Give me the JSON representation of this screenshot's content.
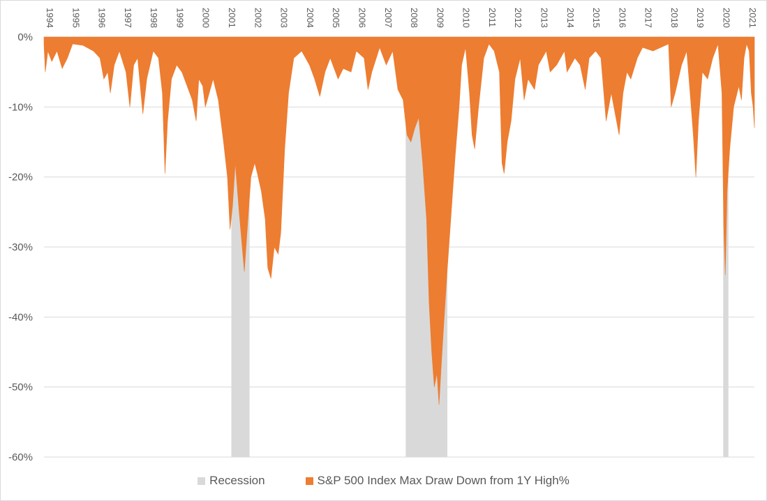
{
  "chart_data": {
    "type": "area",
    "title": "",
    "xlabel": "",
    "ylabel": "",
    "x_range": [
      1994.0,
      2021.3
    ],
    "ylim": [
      -60,
      0
    ],
    "y_ticks": [
      0,
      -10,
      -20,
      -30,
      -40,
      -50,
      -60
    ],
    "y_tick_labels": [
      "0%",
      "-10%",
      "-20%",
      "-30%",
      "-40%",
      "-50%",
      "-60%"
    ],
    "x_tick_labels": [
      "1994",
      "1995",
      "1996",
      "1997",
      "1998",
      "1999",
      "2000",
      "2001",
      "2002",
      "2003",
      "2004",
      "2005",
      "2006",
      "2007",
      "2008",
      "2009",
      "2010",
      "2011",
      "2012",
      "2013",
      "2014",
      "2015",
      "2016",
      "2017",
      "2018",
      "2019",
      "2020",
      "2021"
    ],
    "grid": "horizontal",
    "legend_position": "bottom",
    "colors": {
      "recession": "#d9d9d9",
      "drawdown": "#ed7d31",
      "grid": "#d9d9d9",
      "text": "#595959"
    },
    "series": [
      {
        "name": "Recession",
        "kind": "band",
        "periods": [
          [
            2001.2,
            2001.9
          ],
          [
            2007.9,
            2009.5
          ],
          [
            2020.1,
            2020.3
          ]
        ]
      },
      {
        "name": "S&P 500 Index Max Draw Down from 1Y High%",
        "kind": "area",
        "points": [
          [
            1994.0,
            -1.0
          ],
          [
            1994.05,
            -5.0
          ],
          [
            1994.15,
            -2.0
          ],
          [
            1994.3,
            -3.5
          ],
          [
            1994.5,
            -2.0
          ],
          [
            1994.7,
            -4.5
          ],
          [
            1994.9,
            -3.0
          ],
          [
            1995.1,
            -1.0
          ],
          [
            1995.5,
            -1.2
          ],
          [
            1995.9,
            -2.0
          ],
          [
            1996.15,
            -3.0
          ],
          [
            1996.3,
            -6.0
          ],
          [
            1996.45,
            -5.0
          ],
          [
            1996.55,
            -8.0
          ],
          [
            1996.7,
            -4.0
          ],
          [
            1996.9,
            -2.0
          ],
          [
            1997.15,
            -5.0
          ],
          [
            1997.3,
            -10.0
          ],
          [
            1997.45,
            -4.0
          ],
          [
            1997.6,
            -3.0
          ],
          [
            1997.8,
            -11.0
          ],
          [
            1997.95,
            -6.0
          ],
          [
            1998.2,
            -2.0
          ],
          [
            1998.4,
            -3.0
          ],
          [
            1998.55,
            -8.0
          ],
          [
            1998.65,
            -19.5
          ],
          [
            1998.75,
            -12.0
          ],
          [
            1998.9,
            -6.0
          ],
          [
            1999.1,
            -4.0
          ],
          [
            1999.3,
            -5.0
          ],
          [
            1999.5,
            -7.0
          ],
          [
            1999.7,
            -9.0
          ],
          [
            1999.85,
            -12.0
          ],
          [
            1999.95,
            -6.0
          ],
          [
            2000.1,
            -7.0
          ],
          [
            2000.2,
            -10.0
          ],
          [
            2000.35,
            -8.0
          ],
          [
            2000.5,
            -6.0
          ],
          [
            2000.7,
            -9.0
          ],
          [
            2000.9,
            -15.0
          ],
          [
            2001.05,
            -20.0
          ],
          [
            2001.15,
            -27.5
          ],
          [
            2001.25,
            -24.0
          ],
          [
            2001.35,
            -18.0
          ],
          [
            2001.5,
            -25.0
          ],
          [
            2001.7,
            -33.5
          ],
          [
            2001.8,
            -28.0
          ],
          [
            2001.95,
            -20.0
          ],
          [
            2002.1,
            -18.0
          ],
          [
            2002.2,
            -19.5
          ],
          [
            2002.35,
            -22.0
          ],
          [
            2002.5,
            -26.0
          ],
          [
            2002.6,
            -33.0
          ],
          [
            2002.72,
            -34.5
          ],
          [
            2002.85,
            -30.0
          ],
          [
            2003.0,
            -31.0
          ],
          [
            2003.1,
            -28.0
          ],
          [
            2003.25,
            -16.0
          ],
          [
            2003.4,
            -8.0
          ],
          [
            2003.6,
            -3.0
          ],
          [
            2003.9,
            -2.0
          ],
          [
            2004.2,
            -4.0
          ],
          [
            2004.4,
            -6.0
          ],
          [
            2004.6,
            -8.5
          ],
          [
            2004.8,
            -5.0
          ],
          [
            2005.0,
            -3.0
          ],
          [
            2005.3,
            -6.0
          ],
          [
            2005.5,
            -4.5
          ],
          [
            2005.8,
            -5.0
          ],
          [
            2006.0,
            -2.0
          ],
          [
            2006.3,
            -3.0
          ],
          [
            2006.45,
            -7.5
          ],
          [
            2006.6,
            -5.0
          ],
          [
            2006.9,
            -1.5
          ],
          [
            2007.15,
            -4.0
          ],
          [
            2007.4,
            -2.0
          ],
          [
            2007.6,
            -7.5
          ],
          [
            2007.8,
            -9.0
          ],
          [
            2007.95,
            -14.0
          ],
          [
            2008.1,
            -15.0
          ],
          [
            2008.25,
            -13.0
          ],
          [
            2008.4,
            -11.5
          ],
          [
            2008.55,
            -18.0
          ],
          [
            2008.7,
            -26.0
          ],
          [
            2008.8,
            -38.0
          ],
          [
            2008.9,
            -45.0
          ],
          [
            2009.0,
            -50.0
          ],
          [
            2009.1,
            -48.0
          ],
          [
            2009.18,
            -52.5
          ],
          [
            2009.28,
            -46.0
          ],
          [
            2009.38,
            -40.0
          ],
          [
            2009.5,
            -33.0
          ],
          [
            2009.65,
            -25.0
          ],
          [
            2009.8,
            -17.0
          ],
          [
            2009.95,
            -10.0
          ],
          [
            2010.05,
            -4.0
          ],
          [
            2010.2,
            -1.5
          ],
          [
            2010.35,
            -8.0
          ],
          [
            2010.45,
            -14.0
          ],
          [
            2010.55,
            -16.0
          ],
          [
            2010.7,
            -10.0
          ],
          [
            2010.9,
            -3.0
          ],
          [
            2011.1,
            -1.0
          ],
          [
            2011.3,
            -2.0
          ],
          [
            2011.5,
            -5.0
          ],
          [
            2011.6,
            -18.0
          ],
          [
            2011.68,
            -19.5
          ],
          [
            2011.8,
            -15.0
          ],
          [
            2011.95,
            -12.0
          ],
          [
            2012.1,
            -6.0
          ],
          [
            2012.3,
            -3.0
          ],
          [
            2012.45,
            -9.0
          ],
          [
            2012.6,
            -6.0
          ],
          [
            2012.85,
            -7.5
          ],
          [
            2013.0,
            -4.0
          ],
          [
            2013.3,
            -2.0
          ],
          [
            2013.45,
            -5.0
          ],
          [
            2013.7,
            -4.0
          ],
          [
            2014.0,
            -2.0
          ],
          [
            2014.1,
            -5.0
          ],
          [
            2014.4,
            -3.0
          ],
          [
            2014.6,
            -4.0
          ],
          [
            2014.8,
            -7.5
          ],
          [
            2014.95,
            -3.0
          ],
          [
            2015.2,
            -2.0
          ],
          [
            2015.4,
            -3.0
          ],
          [
            2015.6,
            -12.0
          ],
          [
            2015.8,
            -8.0
          ],
          [
            2016.0,
            -12.0
          ],
          [
            2016.1,
            -14.0
          ],
          [
            2016.25,
            -8.0
          ],
          [
            2016.4,
            -5.0
          ],
          [
            2016.55,
            -6.0
          ],
          [
            2016.8,
            -3.0
          ],
          [
            2017.0,
            -1.5
          ],
          [
            2017.4,
            -2.0
          ],
          [
            2017.7,
            -1.5
          ],
          [
            2018.0,
            -1.0
          ],
          [
            2018.1,
            -10.0
          ],
          [
            2018.25,
            -8.0
          ],
          [
            2018.5,
            -4.0
          ],
          [
            2018.7,
            -2.0
          ],
          [
            2018.85,
            -9.0
          ],
          [
            2018.95,
            -14.0
          ],
          [
            2019.05,
            -20.0
          ],
          [
            2019.15,
            -12.0
          ],
          [
            2019.3,
            -5.0
          ],
          [
            2019.5,
            -6.0
          ],
          [
            2019.7,
            -3.0
          ],
          [
            2019.9,
            -1.0
          ],
          [
            2020.05,
            -8.0
          ],
          [
            2020.12,
            -27.0
          ],
          [
            2020.18,
            -34.0
          ],
          [
            2020.25,
            -22.0
          ],
          [
            2020.35,
            -16.0
          ],
          [
            2020.5,
            -10.0
          ],
          [
            2020.7,
            -7.0
          ],
          [
            2020.8,
            -9.0
          ],
          [
            2020.9,
            -3.0
          ],
          [
            2021.0,
            -1.0
          ],
          [
            2021.1,
            -2.0
          ],
          [
            2021.18,
            -8.0
          ],
          [
            2021.25,
            -10.0
          ],
          [
            2021.3,
            -13.0
          ]
        ]
      }
    ]
  }
}
